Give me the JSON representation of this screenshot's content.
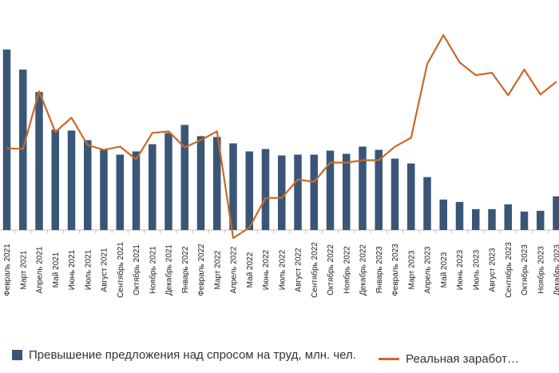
{
  "chart_data": {
    "type": "bar",
    "categories": [
      "Февраль 2021",
      "Март 2021",
      "Апрель 2021",
      "Май 2021",
      "Июнь 2021",
      "Июль 2021",
      "Август 2021",
      "Сентябрь 2021",
      "Октябрь 2021",
      "Ноябрь 2021",
      "Декабрь 2021",
      "Январь 2022",
      "Февраль 2022",
      "Март 2022",
      "Апрель 2022",
      "Май 2022",
      "Июнь 2022",
      "Июль 2022",
      "Август 2022",
      "Сентябрь 2022",
      "Октябрь 2022",
      "Ноябрь 2022",
      "Декабрь 2022",
      "Январь 2023",
      "Февраль 2023",
      "Март 2023",
      "Апрель 2023",
      "Май 2023",
      "Июнь 2023",
      "Июль 2023",
      "Август 2023",
      "Сентябрь 2023",
      "Октябрь 2023",
      "Ноябрь 2023",
      "Декабрь 2023"
    ],
    "series": [
      {
        "name": "Превышение предложения над спросом на труд, млн. чел.",
        "kind": "bar",
        "color": "#3a5677",
        "values": [
          225,
          200,
          172,
          125,
          124,
          112,
          101,
          94,
          98,
          107,
          121,
          131,
          117,
          116,
          108,
          98,
          101,
          93,
          94,
          94,
          99,
          95,
          104,
          100,
          89,
          83,
          66,
          38,
          35,
          26,
          26,
          32,
          23,
          24,
          42
        ]
      },
      {
        "name": "Реальная заработ…",
        "kind": "line",
        "color": "#c8692a",
        "values": [
          102,
          101,
          173,
          122,
          140,
          106,
          100,
          104,
          88,
          121,
          123,
          103,
          112,
          123,
          -10,
          3,
          40,
          40,
          63,
          60,
          84,
          84,
          87,
          87,
          104,
          115,
          207,
          243,
          209,
          193,
          196,
          168,
          200,
          169,
          185
        ]
      }
    ],
    "ylim": [
      -15,
      250
    ],
    "grid": false,
    "legend": "bottom"
  }
}
